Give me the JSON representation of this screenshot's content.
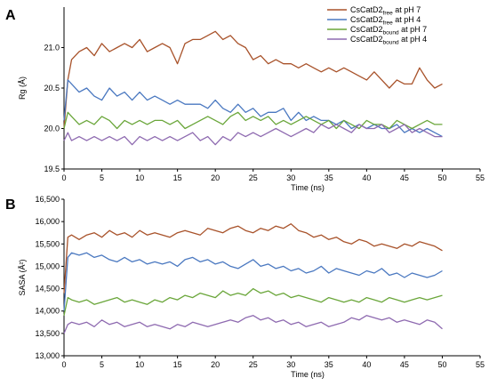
{
  "chart_data": [
    {
      "type": "line",
      "panel_label": "A",
      "xlabel": "Time (ns)",
      "ylabel": "Rg (Å)",
      "xlim": [
        0,
        55
      ],
      "ylim": [
        19.5,
        21.5
      ],
      "xticks": [
        0,
        5,
        10,
        15,
        20,
        25,
        30,
        35,
        40,
        45,
        50,
        55
      ],
      "yticks": [
        19.5,
        20.0,
        20.5,
        21.0
      ],
      "ytick_labels": [
        "19.5",
        "20.0",
        "20.5",
        "21.0"
      ],
      "grid": false,
      "legend_position": "top-right",
      "series": [
        {
          "name": "CsCatD2free at pH 7",
          "name_base": "CsCatD2",
          "name_sub": "free",
          "name_tail": " at pH 7",
          "color": "#a8522a",
          "x": [
            0,
            0.5,
            1,
            2,
            3,
            4,
            5,
            6,
            7,
            8,
            9,
            10,
            11,
            12,
            13,
            14,
            15,
            16,
            17,
            18,
            19,
            20,
            21,
            22,
            23,
            24,
            25,
            26,
            27,
            28,
            29,
            30,
            31,
            32,
            33,
            34,
            35,
            36,
            37,
            38,
            39,
            40,
            41,
            42,
            43,
            44,
            45,
            46,
            47,
            48,
            49,
            50
          ],
          "y": [
            20.0,
            20.6,
            20.85,
            20.95,
            21.0,
            20.9,
            21.05,
            20.95,
            21.0,
            21.05,
            21.0,
            21.1,
            20.95,
            21.0,
            21.05,
            21.0,
            20.8,
            21.05,
            21.1,
            21.1,
            21.15,
            21.2,
            21.1,
            21.15,
            21.05,
            21.0,
            20.85,
            20.9,
            20.8,
            20.85,
            20.8,
            20.8,
            20.75,
            20.8,
            20.75,
            20.7,
            20.75,
            20.7,
            20.75,
            20.7,
            20.65,
            20.6,
            20.7,
            20.6,
            20.5,
            20.6,
            20.55,
            20.55,
            20.75,
            20.6,
            20.5,
            20.55
          ]
        },
        {
          "name": "CsCatD2free at pH 4",
          "name_base": "CsCatD2",
          "name_sub": "free",
          "name_tail": " at pH 4",
          "color": "#4a78c0",
          "x": [
            0,
            0.5,
            1,
            2,
            3,
            4,
            5,
            6,
            7,
            8,
            9,
            10,
            11,
            12,
            13,
            14,
            15,
            16,
            17,
            18,
            19,
            20,
            21,
            22,
            23,
            24,
            25,
            26,
            27,
            28,
            29,
            30,
            31,
            32,
            33,
            34,
            35,
            36,
            37,
            38,
            39,
            40,
            41,
            42,
            43,
            44,
            45,
            46,
            47,
            48,
            49,
            50
          ],
          "y": [
            20.1,
            20.6,
            20.55,
            20.45,
            20.5,
            20.4,
            20.35,
            20.5,
            20.4,
            20.45,
            20.35,
            20.45,
            20.35,
            20.4,
            20.35,
            20.3,
            20.35,
            20.3,
            20.3,
            20.3,
            20.25,
            20.35,
            20.25,
            20.2,
            20.3,
            20.2,
            20.25,
            20.15,
            20.2,
            20.2,
            20.25,
            20.1,
            20.2,
            20.1,
            20.15,
            20.1,
            20.1,
            20.05,
            20.1,
            20.0,
            20.05,
            20.0,
            20.05,
            20.0,
            20.0,
            20.05,
            19.95,
            20.0,
            19.95,
            20.0,
            19.95,
            19.9
          ]
        },
        {
          "name": "CsCatD2bound at pH 7",
          "name_base": "CsCatD2",
          "name_sub": "bound",
          "name_tail": " at pH 7",
          "color": "#6aa63a",
          "x": [
            0,
            0.5,
            1,
            2,
            3,
            4,
            5,
            6,
            7,
            8,
            9,
            10,
            11,
            12,
            13,
            14,
            15,
            16,
            17,
            18,
            19,
            20,
            21,
            22,
            23,
            24,
            25,
            26,
            27,
            28,
            29,
            30,
            31,
            32,
            33,
            34,
            35,
            36,
            37,
            38,
            39,
            40,
            41,
            42,
            43,
            44,
            45,
            46,
            47,
            48,
            49,
            50
          ],
          "y": [
            20.0,
            20.2,
            20.15,
            20.05,
            20.1,
            20.05,
            20.15,
            20.1,
            20.0,
            20.1,
            20.05,
            20.1,
            20.05,
            20.1,
            20.1,
            20.05,
            20.1,
            20.0,
            20.05,
            20.1,
            20.15,
            20.1,
            20.05,
            20.15,
            20.2,
            20.1,
            20.15,
            20.1,
            20.15,
            20.05,
            20.1,
            20.05,
            20.1,
            20.15,
            20.1,
            20.05,
            20.1,
            20.0,
            20.1,
            20.05,
            20.0,
            20.1,
            20.05,
            20.05,
            20.0,
            20.1,
            20.05,
            20.0,
            20.05,
            20.1,
            20.05,
            20.05
          ]
        },
        {
          "name": "CsCatD2bound at pH 4",
          "name_base": "CsCatD2",
          "name_sub": "bound",
          "name_tail": " at pH 4",
          "color": "#8e6ab0",
          "x": [
            0,
            0.5,
            1,
            2,
            3,
            4,
            5,
            6,
            7,
            8,
            9,
            10,
            11,
            12,
            13,
            14,
            15,
            16,
            17,
            18,
            19,
            20,
            21,
            22,
            23,
            24,
            25,
            26,
            27,
            28,
            29,
            30,
            31,
            32,
            33,
            34,
            35,
            36,
            37,
            38,
            39,
            40,
            41,
            42,
            43,
            44,
            45,
            46,
            47,
            48,
            49,
            50
          ],
          "y": [
            19.85,
            19.95,
            19.85,
            19.9,
            19.85,
            19.9,
            19.85,
            19.9,
            19.85,
            19.9,
            19.8,
            19.9,
            19.85,
            19.9,
            19.85,
            19.9,
            19.85,
            19.9,
            19.95,
            19.85,
            19.9,
            19.8,
            19.9,
            19.85,
            19.95,
            19.9,
            19.95,
            19.9,
            19.95,
            20.0,
            19.95,
            19.9,
            19.95,
            20.0,
            19.95,
            20.05,
            20.0,
            20.05,
            20.0,
            19.95,
            20.05,
            20.0,
            20.0,
            20.05,
            19.95,
            20.0,
            20.05,
            19.95,
            20.0,
            19.95,
            19.9,
            19.9
          ]
        }
      ]
    },
    {
      "type": "line",
      "panel_label": "B",
      "xlabel": "Time (ns)",
      "ylabel": "SASA (Å²)",
      "xlim": [
        0,
        55
      ],
      "ylim": [
        13000,
        16500
      ],
      "xticks": [
        0,
        5,
        10,
        15,
        20,
        25,
        30,
        35,
        40,
        45,
        50,
        55
      ],
      "yticks": [
        13000,
        13500,
        14000,
        14500,
        15000,
        15500,
        16000,
        16500
      ],
      "ytick_labels": [
        "13,000",
        "13,500",
        "14,000",
        "14,500",
        "15,000",
        "15,500",
        "16,000",
        "16,500"
      ],
      "grid": false,
      "series": [
        {
          "name": "CsCatD2free at pH 7",
          "color": "#a8522a",
          "x": [
            0,
            0.5,
            1,
            2,
            3,
            4,
            5,
            6,
            7,
            8,
            9,
            10,
            11,
            12,
            13,
            14,
            15,
            16,
            17,
            18,
            19,
            20,
            21,
            22,
            23,
            24,
            25,
            26,
            27,
            28,
            29,
            30,
            31,
            32,
            33,
            34,
            35,
            36,
            37,
            38,
            39,
            40,
            41,
            42,
            43,
            44,
            45,
            46,
            47,
            48,
            49,
            50
          ],
          "y": [
            14400,
            15650,
            15700,
            15600,
            15700,
            15750,
            15650,
            15800,
            15700,
            15750,
            15650,
            15800,
            15700,
            15750,
            15700,
            15650,
            15750,
            15800,
            15750,
            15700,
            15850,
            15800,
            15750,
            15850,
            15900,
            15800,
            15750,
            15850,
            15800,
            15900,
            15850,
            15950,
            15800,
            15750,
            15650,
            15700,
            15600,
            15650,
            15550,
            15500,
            15600,
            15550,
            15450,
            15500,
            15450,
            15400,
            15500,
            15450,
            15550,
            15500,
            15450,
            15350
          ]
        },
        {
          "name": "CsCatD2free at pH 4",
          "color": "#4a78c0",
          "x": [
            0,
            0.5,
            1,
            2,
            3,
            4,
            5,
            6,
            7,
            8,
            9,
            10,
            11,
            12,
            13,
            14,
            15,
            16,
            17,
            18,
            19,
            20,
            21,
            22,
            23,
            24,
            25,
            26,
            27,
            28,
            29,
            30,
            31,
            32,
            33,
            34,
            35,
            36,
            37,
            38,
            39,
            40,
            41,
            42,
            43,
            44,
            45,
            46,
            47,
            48,
            49,
            50
          ],
          "y": [
            14000,
            15200,
            15300,
            15250,
            15300,
            15200,
            15250,
            15150,
            15100,
            15200,
            15100,
            15150,
            15050,
            15100,
            15050,
            15100,
            15000,
            15150,
            15200,
            15100,
            15150,
            15050,
            15100,
            15000,
            14950,
            15050,
            15150,
            15000,
            15050,
            14950,
            15000,
            14900,
            14950,
            14850,
            14900,
            15000,
            14850,
            14950,
            14900,
            14850,
            14800,
            14900,
            14850,
            14950,
            14800,
            14850,
            14750,
            14850,
            14800,
            14750,
            14800,
            14900
          ]
        },
        {
          "name": "CsCatD2bound at pH 7",
          "color": "#6aa63a",
          "x": [
            0,
            0.5,
            1,
            2,
            3,
            4,
            5,
            6,
            7,
            8,
            9,
            10,
            11,
            12,
            13,
            14,
            15,
            16,
            17,
            18,
            19,
            20,
            21,
            22,
            23,
            24,
            25,
            26,
            27,
            28,
            29,
            30,
            31,
            32,
            33,
            34,
            35,
            36,
            37,
            38,
            39,
            40,
            41,
            42,
            43,
            44,
            45,
            46,
            47,
            48,
            49,
            50
          ],
          "y": [
            13900,
            14300,
            14250,
            14200,
            14250,
            14150,
            14200,
            14250,
            14300,
            14200,
            14250,
            14200,
            14150,
            14250,
            14200,
            14300,
            14250,
            14350,
            14300,
            14400,
            14350,
            14300,
            14450,
            14350,
            14400,
            14350,
            14500,
            14400,
            14450,
            14350,
            14400,
            14300,
            14350,
            14300,
            14250,
            14200,
            14300,
            14250,
            14200,
            14250,
            14200,
            14300,
            14250,
            14200,
            14300,
            14250,
            14200,
            14250,
            14300,
            14250,
            14300,
            14350
          ]
        },
        {
          "name": "CsCatD2bound at pH 4",
          "color": "#8e6ab0",
          "x": [
            0,
            0.5,
            1,
            2,
            3,
            4,
            5,
            6,
            7,
            8,
            9,
            10,
            11,
            12,
            13,
            14,
            15,
            16,
            17,
            18,
            19,
            20,
            21,
            22,
            23,
            24,
            25,
            26,
            27,
            28,
            29,
            30,
            31,
            32,
            33,
            34,
            35,
            36,
            37,
            38,
            39,
            40,
            41,
            42,
            43,
            44,
            45,
            46,
            47,
            48,
            49,
            50
          ],
          "y": [
            13500,
            13700,
            13750,
            13700,
            13750,
            13650,
            13800,
            13700,
            13750,
            13650,
            13700,
            13750,
            13650,
            13700,
            13650,
            13600,
            13700,
            13650,
            13750,
            13700,
            13650,
            13700,
            13750,
            13800,
            13750,
            13850,
            13900,
            13800,
            13850,
            13750,
            13800,
            13700,
            13750,
            13650,
            13700,
            13750,
            13650,
            13700,
            13750,
            13850,
            13800,
            13900,
            13850,
            13800,
            13850,
            13750,
            13800,
            13750,
            13700,
            13800,
            13750,
            13600
          ]
        }
      ]
    }
  ]
}
